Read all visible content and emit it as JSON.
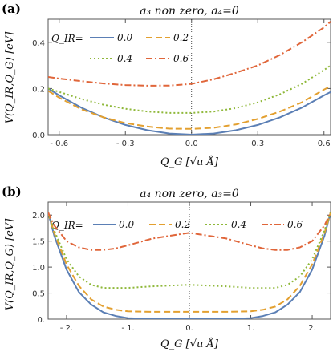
{
  "colors": {
    "q0": "#5b7fb5",
    "q02": "#e3a030",
    "q04": "#8fb83a",
    "q06": "#e0663a"
  },
  "chart_data": [
    {
      "type": "line",
      "panel_label": "(a)",
      "title": "a₃ non zero, a₄=0",
      "xlabel": "Q_G [√u Å]",
      "ylabel": "V(Q_IR,Q_G) [eV]",
      "legend_title": "Q_IR=",
      "xlim": [
        -0.65,
        0.63
      ],
      "ylim": [
        0,
        0.5
      ],
      "xticks": [
        -0.6,
        -0.3,
        0.0,
        0.3,
        0.6
      ],
      "xtick_labels": [
        "- 0.6",
        "- 0.3",
        "0.0",
        "0.3",
        "0.6"
      ],
      "yticks": [
        0,
        0.2,
        0.4
      ],
      "ytick_labels": [
        "0.0",
        "0.2",
        "0.4"
      ],
      "series": [
        {
          "name": "0.0",
          "x": [
            -0.65,
            -0.6,
            -0.5,
            -0.4,
            -0.3,
            -0.2,
            -0.1,
            0,
            0.1,
            0.2,
            0.3,
            0.4,
            0.5,
            0.6,
            0.63
          ],
          "y": [
            0.2,
            0.17,
            0.117,
            0.075,
            0.042,
            0.019,
            0.005,
            0,
            0.005,
            0.019,
            0.042,
            0.075,
            0.117,
            0.17,
            0.185
          ]
        },
        {
          "name": "0.2",
          "x": [
            -0.65,
            -0.6,
            -0.5,
            -0.4,
            -0.3,
            -0.2,
            -0.1,
            0,
            0.1,
            0.2,
            0.3,
            0.4,
            0.5,
            0.6,
            0.63
          ],
          "y": [
            0.19,
            0.16,
            0.11,
            0.075,
            0.05,
            0.035,
            0.026,
            0.025,
            0.03,
            0.044,
            0.068,
            0.1,
            0.14,
            0.195,
            0.21
          ]
        },
        {
          "name": "0.4",
          "x": [
            -0.65,
            -0.6,
            -0.5,
            -0.4,
            -0.3,
            -0.2,
            -0.1,
            0,
            0.1,
            0.2,
            0.3,
            0.4,
            0.5,
            0.6,
            0.63
          ],
          "y": [
            0.2,
            0.185,
            0.155,
            0.13,
            0.112,
            0.1,
            0.094,
            0.094,
            0.1,
            0.115,
            0.14,
            0.175,
            0.22,
            0.28,
            0.3
          ]
        },
        {
          "name": "0.6",
          "x": [
            -0.65,
            -0.6,
            -0.5,
            -0.4,
            -0.3,
            -0.2,
            -0.1,
            0,
            0.1,
            0.2,
            0.3,
            0.4,
            0.5,
            0.6,
            0.63
          ],
          "y": [
            0.25,
            0.243,
            0.232,
            0.222,
            0.215,
            0.212,
            0.213,
            0.22,
            0.24,
            0.268,
            0.3,
            0.345,
            0.4,
            0.465,
            0.49
          ]
        }
      ],
      "annotations": [
        "vertical dotted line at x=0"
      ]
    },
    {
      "type": "line",
      "panel_label": "(b)",
      "title": "a₄ non zero, a₃=0",
      "xlabel": "Q_G [√u Å]",
      "ylabel": "V(Q_IR,Q_G) [eV]",
      "legend_title": "Q_IR=",
      "xlim": [
        -2.3,
        2.3
      ],
      "ylim": [
        0,
        2.25
      ],
      "xticks": [
        -2,
        -1,
        0,
        1,
        2
      ],
      "xtick_labels": [
        "- 2.",
        "- 1.",
        "0.",
        "1.",
        "2."
      ],
      "yticks": [
        0,
        0.5,
        1,
        1.5,
        2
      ],
      "ytick_labels": [
        "0.",
        "0.5",
        "1.0",
        "1.5",
        "2.0"
      ],
      "series": [
        {
          "name": "0.0",
          "x": [
            -2.3,
            -2.2,
            -2,
            -1.8,
            -1.6,
            -1.4,
            -1.2,
            -1,
            -0.6,
            0,
            0.6,
            1,
            1.2,
            1.4,
            1.6,
            1.8,
            2,
            2.2,
            2.3
          ],
          "y": [
            2.05,
            1.6,
            0.95,
            0.52,
            0.28,
            0.13,
            0.06,
            0.02,
            0.005,
            0,
            0.005,
            0.02,
            0.06,
            0.13,
            0.28,
            0.52,
            0.95,
            1.6,
            2.05
          ]
        },
        {
          "name": "0.2",
          "x": [
            -2.3,
            -2.2,
            -2,
            -1.8,
            -1.6,
            -1.4,
            -1.2,
            -1,
            -0.6,
            0,
            0.6,
            1,
            1.2,
            1.4,
            1.6,
            1.8,
            2,
            2.2,
            2.3
          ],
          "y": [
            2.05,
            1.65,
            1.05,
            0.64,
            0.38,
            0.24,
            0.18,
            0.15,
            0.14,
            0.14,
            0.14,
            0.15,
            0.18,
            0.24,
            0.38,
            0.64,
            1.05,
            1.65,
            2.05
          ]
        },
        {
          "name": "0.4",
          "x": [
            -2.3,
            -2.2,
            -2,
            -1.8,
            -1.6,
            -1.4,
            -1.2,
            -1,
            -0.6,
            0,
            0.6,
            1,
            1.2,
            1.4,
            1.6,
            1.8,
            2,
            2.2,
            2.3
          ],
          "y": [
            2.05,
            1.7,
            1.15,
            0.82,
            0.66,
            0.6,
            0.6,
            0.6,
            0.63,
            0.66,
            0.63,
            0.6,
            0.6,
            0.6,
            0.66,
            0.82,
            1.15,
            1.7,
            2.05
          ]
        },
        {
          "name": "0.6",
          "x": [
            -2.3,
            -2.2,
            -2,
            -1.8,
            -1.6,
            -1.4,
            -1.2,
            -1,
            -0.6,
            0,
            0.6,
            1,
            1.2,
            1.4,
            1.6,
            1.8,
            2,
            2.2,
            2.3
          ],
          "y": [
            2.05,
            1.8,
            1.5,
            1.38,
            1.33,
            1.33,
            1.36,
            1.42,
            1.55,
            1.66,
            1.55,
            1.42,
            1.36,
            1.33,
            1.33,
            1.38,
            1.5,
            1.8,
            2.05
          ]
        }
      ],
      "annotations": [
        "vertical dotted line at x=0"
      ]
    }
  ]
}
